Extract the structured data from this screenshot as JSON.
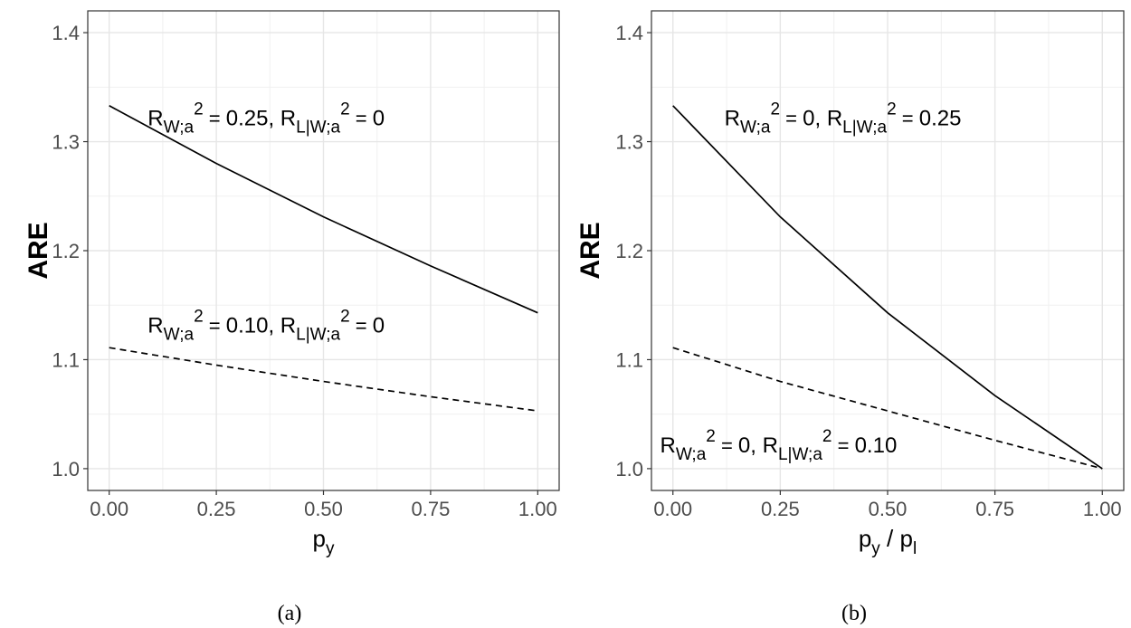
{
  "chart_data": [
    {
      "type": "line",
      "panel_label": "(a)",
      "ylabel": "ARE",
      "xlabel": {
        "base": "p",
        "sub": "y",
        "mid": "",
        "base2": "",
        "sub2": ""
      },
      "xlim": [
        -0.05,
        1.05
      ],
      "ylim": [
        0.98,
        1.42
      ],
      "x_ticks": [
        "0.00",
        "0.25",
        "0.50",
        "0.75",
        "1.00"
      ],
      "y_ticks": [
        "1.0",
        "1.1",
        "1.2",
        "1.3",
        "1.4"
      ],
      "grid": true,
      "series": [
        {
          "style": "solid",
          "x": [
            0,
            0.25,
            0.5,
            0.75,
            1.0
          ],
          "values": [
            1.333,
            1.28,
            1.231,
            1.186,
            1.143
          ]
        },
        {
          "style": "dashed",
          "x": [
            0,
            0.25,
            0.5,
            0.75,
            1.0
          ],
          "values": [
            1.111,
            1.095,
            1.08,
            1.066,
            1.053
          ]
        }
      ],
      "annotations": [
        {
          "r1": "0.25",
          "r2": "0",
          "sep": ", ",
          "at_x": 0.09,
          "at_y": 1.315
        },
        {
          "r1": "0.10",
          "r2": "0",
          "sep": ", ",
          "at_x": 0.09,
          "at_y": 1.125
        }
      ]
    },
    {
      "type": "line",
      "panel_label": "(b)",
      "ylabel": "ARE",
      "xlabel": {
        "base": "p",
        "sub": "y",
        "mid": " / ",
        "base2": "p",
        "sub2": "l"
      },
      "xlim": [
        -0.05,
        1.05
      ],
      "ylim": [
        0.98,
        1.42
      ],
      "x_ticks": [
        "0.00",
        "0.25",
        "0.50",
        "0.75",
        "1.00"
      ],
      "y_ticks": [
        "1.0",
        "1.1",
        "1.2",
        "1.3",
        "1.4"
      ],
      "grid": true,
      "series": [
        {
          "style": "solid",
          "x": [
            0,
            0.25,
            0.5,
            0.75,
            1.0
          ],
          "values": [
            1.333,
            1.231,
            1.143,
            1.067,
            1.0
          ]
        },
        {
          "style": "dashed",
          "x": [
            0,
            0.25,
            0.5,
            0.75,
            1.0
          ],
          "values": [
            1.111,
            1.08,
            1.053,
            1.026,
            1.0
          ]
        }
      ],
      "annotations": [
        {
          "r1": "0",
          "r2": "0.25",
          "sep": ", ",
          "at_x": 0.12,
          "at_y": 1.315
        },
        {
          "r1": "0",
          "r2": "0.10",
          "sep": ", ",
          "at_x": -0.03,
          "at_y": 1.015
        }
      ]
    }
  ],
  "math": {
    "R": "R",
    "sub_w": "W;a",
    "sub_lw": "L|W;a",
    "sup": "2",
    "eq": " = "
  }
}
